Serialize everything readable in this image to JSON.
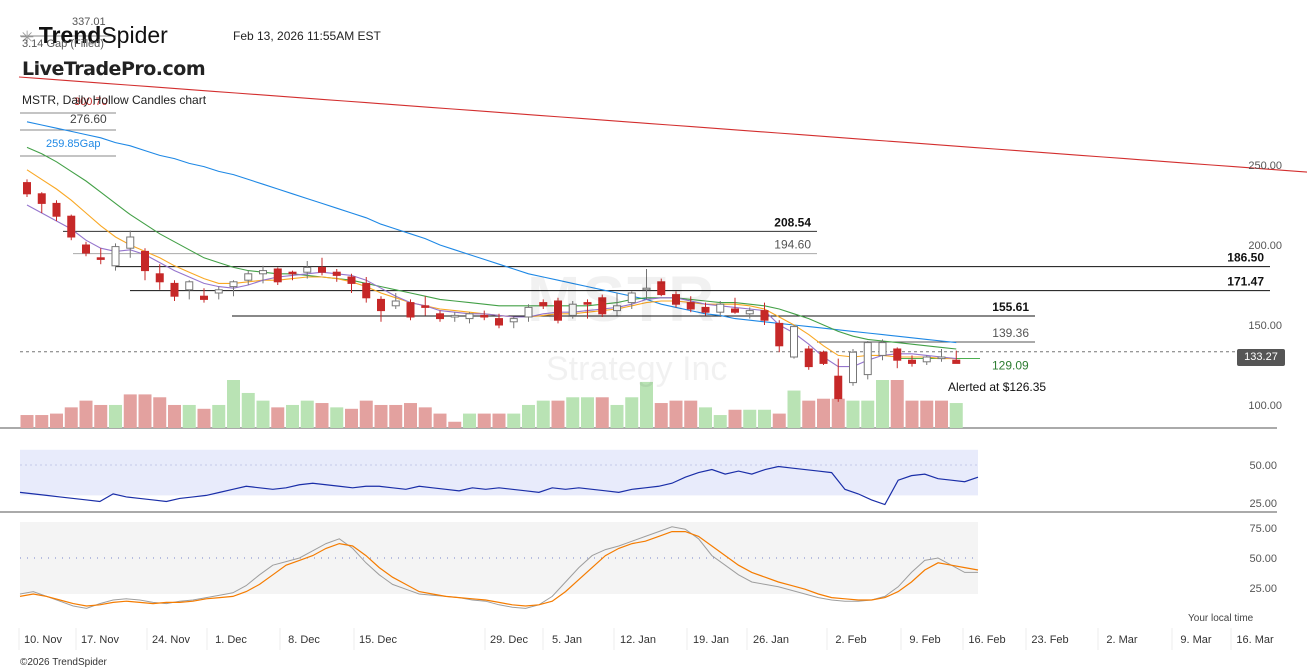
{
  "header": {
    "logo_bold": "Trend",
    "logo_light": "Spider",
    "timestamp": "Feb 13, 2026 11:55AM EST",
    "brand": "LiveTradePro.com",
    "chart_title": "MSTR, Daily Hollow Candles chart",
    "gap_filled_label": "3.14 Gap (Filled)",
    "top_level_value": "337.01",
    "level_300_label": "300.70",
    "level_276_label": "276.60",
    "level_259_label": "259.85Gap"
  },
  "watermark": {
    "ticker": "MSTR",
    "company": "Strategy Inc"
  },
  "footer": {
    "copyright": "©2026 TrendSpider",
    "local_time": "Your local time"
  },
  "current_price": "133.27",
  "alert_text": "Alerted at $126.35",
  "colors": {
    "bear": "#c62828",
    "bull_hollow": "#ffffff",
    "sma200": "#d32f2f",
    "sma50": "#1e88e5",
    "sma20": "#43a047",
    "ema9": "#f9a825",
    "sma5": "#9575cd",
    "vol_up": "#b9e3b4",
    "vol_down": "#e3a19f",
    "rsi": "#1a2ea8",
    "rsi_band": "#e8ebfb",
    "stoch_k": "#f57c00",
    "stoch_d": "#9e9e9e"
  },
  "chart_data": [
    {
      "type": "candlestick",
      "title": "MSTR, Daily Hollow Candles chart",
      "ylim": [
        88,
        305
      ],
      "y_ticks": [
        100,
        150,
        200,
        250
      ],
      "x_ticks": [
        "10. Nov",
        "17. Nov",
        "24. Nov",
        "1. Dec",
        "8. Dec",
        "15. Dec",
        "29. Dec",
        "5. Jan",
        "12. Jan",
        "19. Jan",
        "26. Jan",
        "2. Feb",
        "9. Feb",
        "16. Feb",
        "23. Feb",
        "2. Mar",
        "9. Mar",
        "16. Mar"
      ],
      "candles": [
        [
          239,
          241,
          230,
          232
        ],
        [
          232,
          233,
          220,
          226
        ],
        [
          226,
          228,
          215,
          218
        ],
        [
          218,
          219,
          203,
          205
        ],
        [
          200,
          202,
          193,
          195
        ],
        [
          192,
          198,
          188,
          191
        ],
        [
          187,
          201,
          184,
          199
        ],
        [
          198,
          209,
          192,
          205
        ],
        [
          196,
          198,
          178,
          184
        ],
        [
          182,
          188,
          172,
          177
        ],
        [
          176,
          178,
          165,
          168
        ],
        [
          172,
          178,
          166,
          177
        ],
        [
          168,
          173,
          164,
          166
        ],
        [
          170,
          174,
          166,
          172
        ],
        [
          174,
          178,
          168,
          177
        ],
        [
          178,
          184,
          175,
          182
        ],
        [
          182,
          187,
          176,
          184
        ],
        [
          185,
          186,
          175,
          177
        ],
        [
          183,
          184,
          178,
          182
        ],
        [
          183,
          190,
          179,
          186
        ],
        [
          186,
          192,
          181,
          183
        ],
        [
          183,
          185,
          177,
          181
        ],
        [
          180,
          182,
          170,
          176
        ],
        [
          176,
          180,
          164,
          167
        ],
        [
          166,
          168,
          152,
          159
        ],
        [
          162,
          170,
          160,
          165
        ],
        [
          164,
          166,
          153,
          155
        ],
        [
          162,
          168,
          156,
          161
        ],
        [
          157,
          159,
          152,
          154
        ],
        [
          155,
          158,
          152,
          156
        ],
        [
          154,
          158,
          151,
          157
        ],
        [
          156,
          159,
          153,
          155
        ],
        [
          154,
          157,
          148,
          150
        ],
        [
          152,
          155,
          148,
          154
        ],
        [
          155,
          163,
          152,
          161
        ],
        [
          164,
          166,
          160,
          162
        ],
        [
          165,
          167,
          151,
          153
        ],
        [
          156,
          165,
          154,
          163
        ],
        [
          164,
          166,
          154,
          163
        ],
        [
          167,
          169,
          155,
          157
        ],
        [
          159,
          170,
          156,
          162
        ],
        [
          164,
          171,
          160,
          170
        ],
        [
          172,
          185,
          166,
          173
        ],
        [
          177,
          179,
          168,
          169
        ],
        [
          169,
          171,
          161,
          163
        ],
        [
          164,
          168,
          158,
          160
        ],
        [
          161,
          164,
          156,
          158
        ],
        [
          158,
          165,
          155,
          163
        ],
        [
          160,
          167,
          157,
          158
        ],
        [
          157,
          161,
          154,
          159
        ],
        [
          159,
          164,
          150,
          153
        ],
        [
          151,
          153,
          133,
          137
        ],
        [
          130,
          150,
          129,
          149
        ],
        [
          135,
          137,
          122,
          124
        ],
        [
          133,
          134,
          125,
          126
        ],
        [
          118,
          129,
          102,
          104
        ],
        [
          114,
          135,
          112,
          133
        ],
        [
          119,
          140,
          116,
          139
        ],
        [
          131,
          141,
          128,
          139
        ],
        [
          135,
          136,
          123,
          128
        ],
        [
          128,
          131,
          124,
          126
        ],
        [
          127,
          131,
          125,
          130
        ],
        [
          129,
          135,
          127,
          130
        ],
        [
          128,
          134,
          126,
          126
        ]
      ],
      "volume_up": [
        false,
        false,
        false,
        false,
        false,
        false,
        true,
        false,
        false,
        false,
        false,
        true,
        false,
        true,
        true,
        true,
        true,
        false,
        true,
        true,
        false,
        true,
        false,
        false,
        false,
        false,
        false,
        false,
        false,
        false,
        true,
        false,
        false,
        true,
        true,
        true,
        false,
        true,
        true,
        false,
        true,
        true,
        true,
        false,
        false,
        false,
        true,
        true,
        false,
        true,
        true,
        false,
        true,
        false,
        false,
        false,
        true,
        true,
        true,
        false,
        false,
        false,
        false,
        true
      ],
      "volume_height": [
        0.27,
        0.27,
        0.3,
        0.43,
        0.57,
        0.48,
        0.48,
        0.7,
        0.7,
        0.64,
        0.48,
        0.48,
        0.4,
        0.48,
        1.0,
        0.73,
        0.57,
        0.43,
        0.48,
        0.57,
        0.52,
        0.43,
        0.4,
        0.57,
        0.48,
        0.48,
        0.52,
        0.43,
        0.3,
        0.13,
        0.3,
        0.3,
        0.3,
        0.3,
        0.48,
        0.57,
        0.57,
        0.64,
        0.64,
        0.64,
        0.48,
        0.64,
        0.96,
        0.52,
        0.57,
        0.57,
        0.43,
        0.27,
        0.38,
        0.38,
        0.38,
        0.3,
        0.78,
        0.57,
        0.61,
        0.61,
        0.57,
        0.57,
        1.0,
        1.0,
        0.57,
        0.57,
        0.57,
        0.52
      ],
      "series": [
        {
          "name": "",
          "values": [
            305,
            304,
            303,
            302,
            301,
            300,
            299,
            298,
            297,
            296,
            295,
            294,
            293,
            292,
            291,
            290,
            289,
            288,
            287,
            286,
            285,
            284,
            283,
            282,
            281,
            280,
            279,
            278,
            277,
            276,
            275,
            274,
            273,
            272,
            271,
            270,
            269,
            268,
            267,
            266,
            265,
            264,
            263,
            262,
            261,
            260,
            259,
            258,
            257,
            256,
            255,
            254,
            253,
            252,
            251,
            250,
            249,
            248,
            247,
            246,
            245,
            244,
            243,
            242
          ]
        },
        {
          "name": "",
          "values": [
            277,
            275,
            273,
            271,
            269,
            267,
            264,
            262,
            259,
            256,
            254,
            251,
            249,
            246,
            244,
            241,
            238,
            235,
            232,
            229,
            226,
            223,
            220,
            217,
            213,
            210,
            207,
            204,
            200,
            197,
            194,
            191,
            188,
            185,
            182,
            180,
            178,
            176,
            174,
            172,
            170,
            168,
            166,
            163,
            161,
            159,
            157,
            156,
            154,
            153,
            152,
            151,
            150,
            149,
            148,
            147,
            146,
            145,
            144,
            143,
            142,
            141,
            140,
            139
          ]
        },
        {
          "name": "",
          "values": [
            261,
            257,
            252,
            246,
            240,
            233,
            226,
            219,
            213,
            207,
            202,
            197,
            192,
            189,
            186,
            184,
            183,
            182,
            182,
            181,
            180,
            179,
            178,
            176,
            174,
            172,
            170,
            168,
            166,
            165,
            164,
            163,
            162,
            162,
            162,
            162,
            162,
            162,
            162,
            163,
            164,
            166,
            167,
            167,
            167,
            166,
            165,
            164,
            164,
            163,
            162,
            160,
            157,
            154,
            150,
            146,
            143,
            141,
            140,
            139,
            138,
            137,
            136,
            135
          ]
        },
        {
          "name": "",
          "values": [
            247,
            241,
            235,
            228,
            220,
            212,
            205,
            200,
            196,
            192,
            187,
            183,
            179,
            176,
            176,
            177,
            178,
            178,
            179,
            180,
            180,
            179,
            177,
            174,
            170,
            167,
            164,
            162,
            160,
            159,
            158,
            157,
            156,
            155,
            155,
            156,
            157,
            157,
            158,
            159,
            160,
            162,
            164,
            165,
            165,
            164,
            163,
            163,
            163,
            162,
            160,
            155,
            150,
            144,
            137,
            131,
            130,
            131,
            131,
            130,
            130,
            130,
            129,
            129
          ]
        },
        {
          "name": "",
          "values": [
            225,
            220,
            215,
            210,
            203,
            198,
            196,
            197,
            194,
            189,
            184,
            180,
            176,
            174,
            173,
            175,
            178,
            180,
            181,
            182,
            183,
            182,
            181,
            178,
            173,
            168,
            164,
            162,
            159,
            158,
            157,
            157,
            156,
            155,
            155,
            157,
            158,
            158,
            159,
            160,
            161,
            163,
            166,
            167,
            167,
            165,
            163,
            162,
            161,
            160,
            159,
            150,
            145,
            138,
            130,
            124,
            124,
            128,
            131,
            132,
            132,
            131,
            130,
            129
          ]
        }
      ],
      "levels": [
        {
          "label": "208.54",
          "value": 208.5
        },
        {
          "label": "194.60",
          "value": 194.6
        },
        {
          "label": "186.50",
          "value": 186.5
        },
        {
          "label": "171.47",
          "value": 171.5
        },
        {
          "label": "155.61",
          "value": 155.6
        },
        {
          "label": "139.36",
          "value": 139.4
        },
        {
          "label": "129.09",
          "value": 129.1
        }
      ]
    },
    {
      "type": "line",
      "ylim": [
        20,
        60
      ],
      "y_ticks": [
        25,
        50
      ],
      "values": [
        32,
        31,
        30,
        29,
        28,
        27,
        26,
        31,
        29,
        28,
        27,
        26,
        28,
        29,
        30,
        32,
        34,
        36,
        35,
        34,
        35,
        37,
        38,
        37,
        36,
        35,
        36,
        36,
        35,
        34,
        36,
        35,
        34,
        33,
        35,
        34,
        35,
        34,
        33,
        32,
        35,
        34,
        35,
        34,
        33,
        32,
        34,
        35,
        36,
        38,
        42,
        45,
        47,
        44,
        46,
        44,
        47,
        49,
        48,
        47,
        46,
        45,
        34,
        31,
        27,
        24,
        40,
        43,
        44,
        41,
        40,
        39,
        42
      ]
    },
    {
      "type": "line",
      "ylim": [
        5,
        80
      ],
      "y_ticks": [
        25,
        50,
        75
      ],
      "series": [
        {
          "name": "",
          "values": [
            18,
            20,
            18,
            15,
            12,
            10,
            11,
            13,
            14,
            13,
            12,
            13,
            13,
            14,
            16,
            17,
            18,
            22,
            28,
            36,
            44,
            48,
            52,
            58,
            62,
            60,
            52,
            42,
            34,
            28,
            22,
            20,
            18,
            17,
            16,
            15,
            13,
            11,
            10,
            11,
            14,
            22,
            32,
            42,
            52,
            58,
            62,
            64,
            68,
            72,
            72,
            68,
            60,
            52,
            44,
            38,
            34,
            30,
            27,
            24,
            20,
            17,
            16,
            15,
            15,
            17,
            22,
            30,
            40,
            46,
            44,
            42,
            40
          ]
        },
        {
          "name": "",
          "values": [
            20,
            22,
            18,
            14,
            10,
            8,
            12,
            15,
            16,
            15,
            13,
            12,
            14,
            15,
            17,
            19,
            21,
            27,
            36,
            44,
            47,
            50,
            56,
            62,
            66,
            58,
            46,
            36,
            28,
            24,
            20,
            19,
            18,
            17,
            15,
            14,
            11,
            9,
            8,
            11,
            18,
            30,
            42,
            52,
            57,
            60,
            64,
            68,
            72,
            76,
            74,
            66,
            52,
            44,
            36,
            30,
            28,
            26,
            23,
            20,
            17,
            15,
            14,
            14,
            15,
            18,
            26,
            38,
            48,
            50,
            44,
            38,
            38
          ]
        }
      ]
    }
  ]
}
